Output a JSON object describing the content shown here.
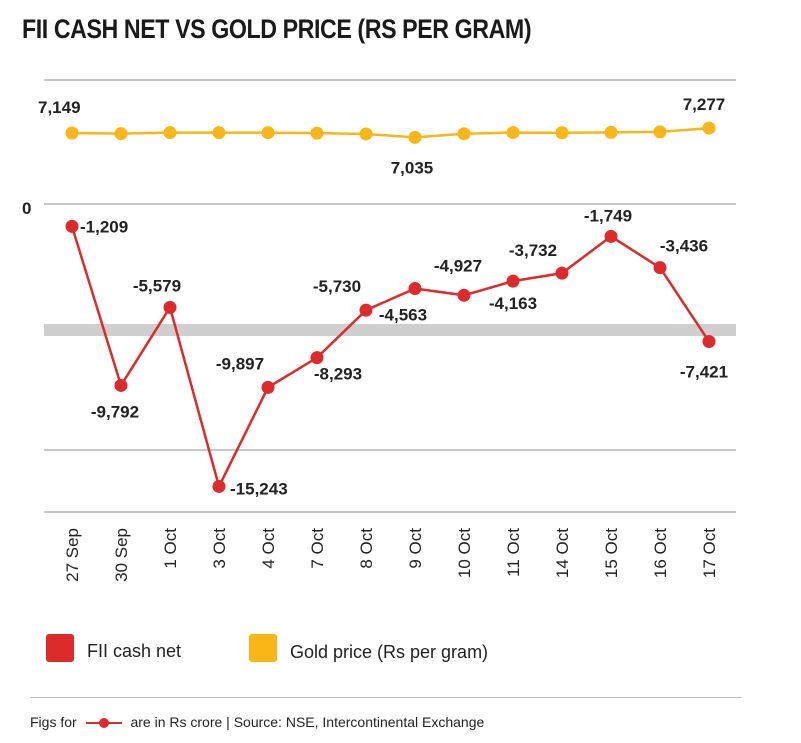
{
  "chart_data": {
    "type": "line",
    "title": "FII CASH NET VS GOLD PRICE (RS PER GRAM)",
    "categories": [
      "27 Sep",
      "30 Sep",
      "1 Oct",
      "3 Oct",
      "4 Oct",
      "7 Oct",
      "8 Oct",
      "9 Oct",
      "10 Oct",
      "11 Oct",
      "14 Oct",
      "15 Oct",
      "16 Oct",
      "17 Oct"
    ],
    "series": [
      {
        "name": "FII cash net",
        "color": "#dd2a2a",
        "values": [
          -1209,
          -9792,
          -5579,
          -15243,
          -9897,
          -8293,
          -5730,
          -4563,
          -4927,
          -4163,
          -3732,
          -1749,
          -3436,
          -7421
        ],
        "labels": [
          "-1,209",
          "-9,792",
          "-5,579",
          "-15,243",
          "-9,897",
          "-8,293",
          "-5,730",
          "-4,563",
          "-4,927",
          "-4,163",
          "-3,732",
          "-1,749",
          "-3,436",
          "-7,421"
        ]
      },
      {
        "name": "Gold price (Rs per gram)",
        "color": "#f9b616",
        "values": [
          7149,
          7132,
          7160,
          7158,
          7157,
          7145,
          7124,
          7035,
          7130,
          7160,
          7155,
          7165,
          7178,
          7277
        ],
        "labels": [
          "7,149",
          "",
          "",
          "",
          "",
          "",
          "",
          "7,035",
          "",
          "",
          "",
          "",
          "",
          "7,277"
        ]
      }
    ],
    "y_axis_labels": [
      "0"
    ],
    "xlabel": "",
    "ylabel": "",
    "legend_position": "bottom-left"
  },
  "legend": {
    "fii_label": "FII cash net",
    "gold_label": "Gold price (Rs per gram)"
  },
  "footer": {
    "prefix": "Figs for",
    "suffix": "are in Rs crore | Source: NSE, Intercontinental Exchange"
  },
  "colors": {
    "fii": "#dd2a2a",
    "gold": "#f9b616",
    "grid": "#b5b5b5",
    "highlight_band": "#cfcfcf"
  }
}
